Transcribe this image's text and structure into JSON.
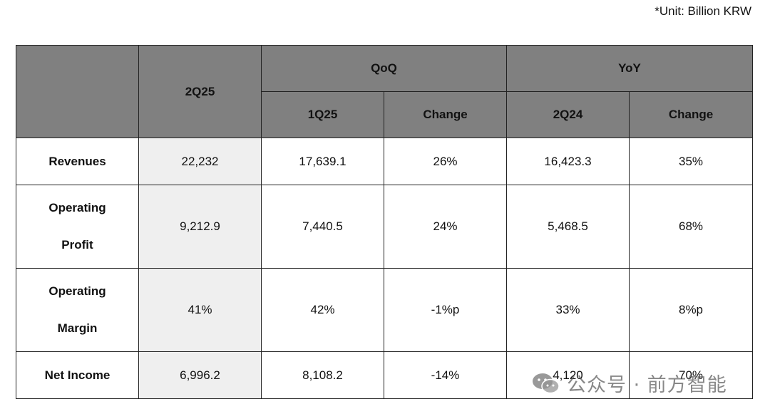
{
  "unit_note": "*Unit: Billion KRW",
  "header": {
    "col_current": "2Q25",
    "qoq": "QoQ",
    "yoy": "YoY",
    "qoq_prev": "1Q25",
    "qoq_change": "Change",
    "yoy_prev": "2Q24",
    "yoy_change": "Change"
  },
  "rows": [
    {
      "label": "Revenues",
      "current": "22,232",
      "qoq_prev": "17,639.1",
      "qoq_change": "26%",
      "yoy_prev": "16,423.3",
      "yoy_change": "35%"
    },
    {
      "label_line1": "Operating",
      "label_line2": "Profit",
      "current": "9,212.9",
      "qoq_prev": "7,440.5",
      "qoq_change": "24%",
      "yoy_prev": "5,468.5",
      "yoy_change": "68%"
    },
    {
      "label_line1": "Operating",
      "label_line2": "Margin",
      "current": "41%",
      "qoq_prev": "42%",
      "qoq_change": "-1%p",
      "yoy_prev": "33%",
      "yoy_change": "8%p"
    },
    {
      "label": "Net Income",
      "current": "6,996.2",
      "qoq_prev": "8,108.2",
      "qoq_change": "-14%",
      "yoy_prev": "4,120",
      "yoy_change": "70%"
    }
  ],
  "watermark": {
    "text": "公众号 · 前方智能",
    "icon": "wechat-icon"
  }
}
